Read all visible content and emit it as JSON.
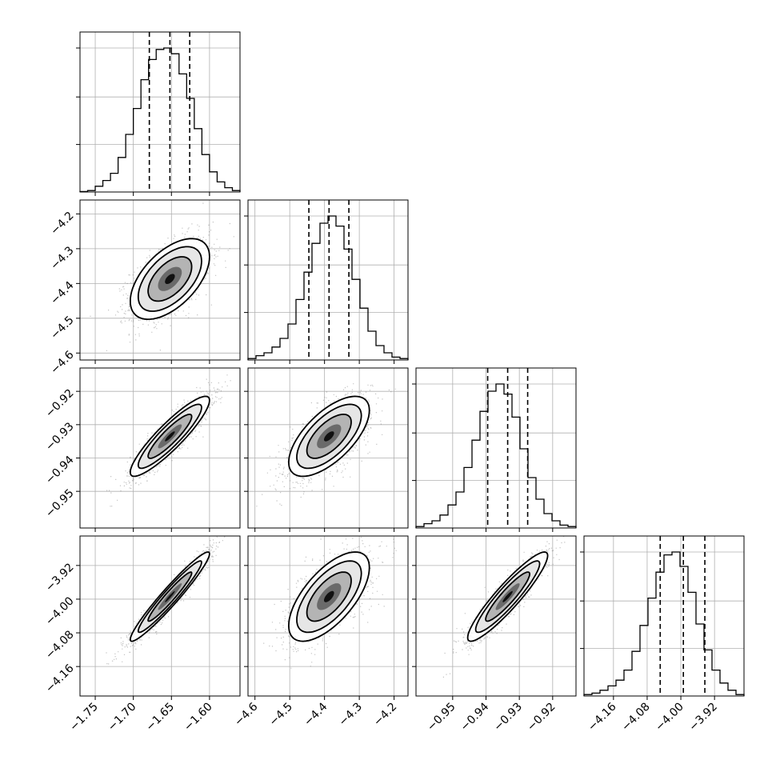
{
  "chart_data": {
    "type": "corner",
    "grid": true,
    "parameters": [
      {
        "range": [
          -1.77,
          -1.56
        ],
        "ticks": [
          -1.75,
          -1.7,
          -1.65,
          -1.6
        ],
        "tick_labels": [
          "−1.75",
          "−1.70",
          "−1.65",
          "−1.60"
        ],
        "quantiles": [
          -1.679,
          -1.652,
          -1.626
        ],
        "hist": [
          0.003,
          0.01,
          0.04,
          0.08,
          0.13,
          0.24,
          0.4,
          0.58,
          0.78,
          0.92,
          0.99,
          1.0,
          0.96,
          0.82,
          0.65,
          0.44,
          0.26,
          0.14,
          0.07,
          0.03,
          0.01
        ]
      },
      {
        "range": [
          -4.62,
          -4.16
        ],
        "ticks": [
          -4.6,
          -4.5,
          -4.4,
          -4.3,
          -4.2
        ],
        "tick_labels": [
          "−4.6",
          "−4.5",
          "−4.4",
          "−4.3",
          "−4.2"
        ],
        "quantiles": [
          -4.445,
          -4.387,
          -4.33
        ],
        "hist": [
          0.01,
          0.03,
          0.05,
          0.09,
          0.15,
          0.25,
          0.42,
          0.61,
          0.81,
          0.95,
          1.0,
          0.93,
          0.77,
          0.56,
          0.36,
          0.2,
          0.1,
          0.05,
          0.02,
          0.01
        ]
      },
      {
        "range": [
          -0.961,
          -0.913
        ],
        "ticks": [
          -0.95,
          -0.94,
          -0.93,
          -0.92
        ],
        "tick_labels": [
          "−0.95",
          "−0.94",
          "−0.93",
          "−0.92"
        ],
        "quantiles": [
          -0.9395,
          -0.9335,
          -0.9275
        ],
        "hist": [
          0.01,
          0.03,
          0.05,
          0.09,
          0.16,
          0.25,
          0.42,
          0.61,
          0.81,
          0.95,
          1.0,
          0.93,
          0.77,
          0.55,
          0.35,
          0.2,
          0.1,
          0.05,
          0.02,
          0.01
        ]
      },
      {
        "range": [
          -4.23,
          -3.85
        ],
        "ticks": [
          -4.16,
          -4.08,
          -4.0,
          -3.92
        ],
        "tick_labels": [
          "−4.16",
          "−4.08",
          "−4.00",
          "−3.92"
        ],
        "quantiles": [
          -4.049,
          -3.994,
          -3.943
        ],
        "hist": [
          0.01,
          0.02,
          0.04,
          0.07,
          0.11,
          0.18,
          0.31,
          0.49,
          0.68,
          0.86,
          0.98,
          1.0,
          0.9,
          0.72,
          0.5,
          0.32,
          0.18,
          0.09,
          0.04,
          0.01
        ]
      }
    ],
    "pairs": [
      {
        "x": 0,
        "y": 1,
        "mean": [
          -1.652,
          -4.387
        ],
        "sd": [
          0.026,
          0.058
        ],
        "corr": 0.55
      },
      {
        "x": 0,
        "y": 2,
        "mean": [
          -1.652,
          -0.9335
        ],
        "sd": [
          0.026,
          0.006
        ],
        "corr": 0.9
      },
      {
        "x": 1,
        "y": 2,
        "mean": [
          -4.387,
          -0.9335
        ],
        "sd": [
          0.058,
          0.006
        ],
        "corr": 0.65
      },
      {
        "x": 0,
        "y": 3,
        "mean": [
          -1.652,
          -3.994
        ],
        "sd": [
          0.026,
          0.053
        ],
        "corr": 0.96
      },
      {
        "x": 1,
        "y": 3,
        "mean": [
          -4.387,
          -3.994
        ],
        "sd": [
          0.058,
          0.053
        ],
        "corr": 0.65
      },
      {
        "x": 2,
        "y": 3,
        "mean": [
          -0.9335,
          -3.994
        ],
        "sd": [
          0.006,
          0.053
        ],
        "corr": 0.92
      }
    ]
  }
}
